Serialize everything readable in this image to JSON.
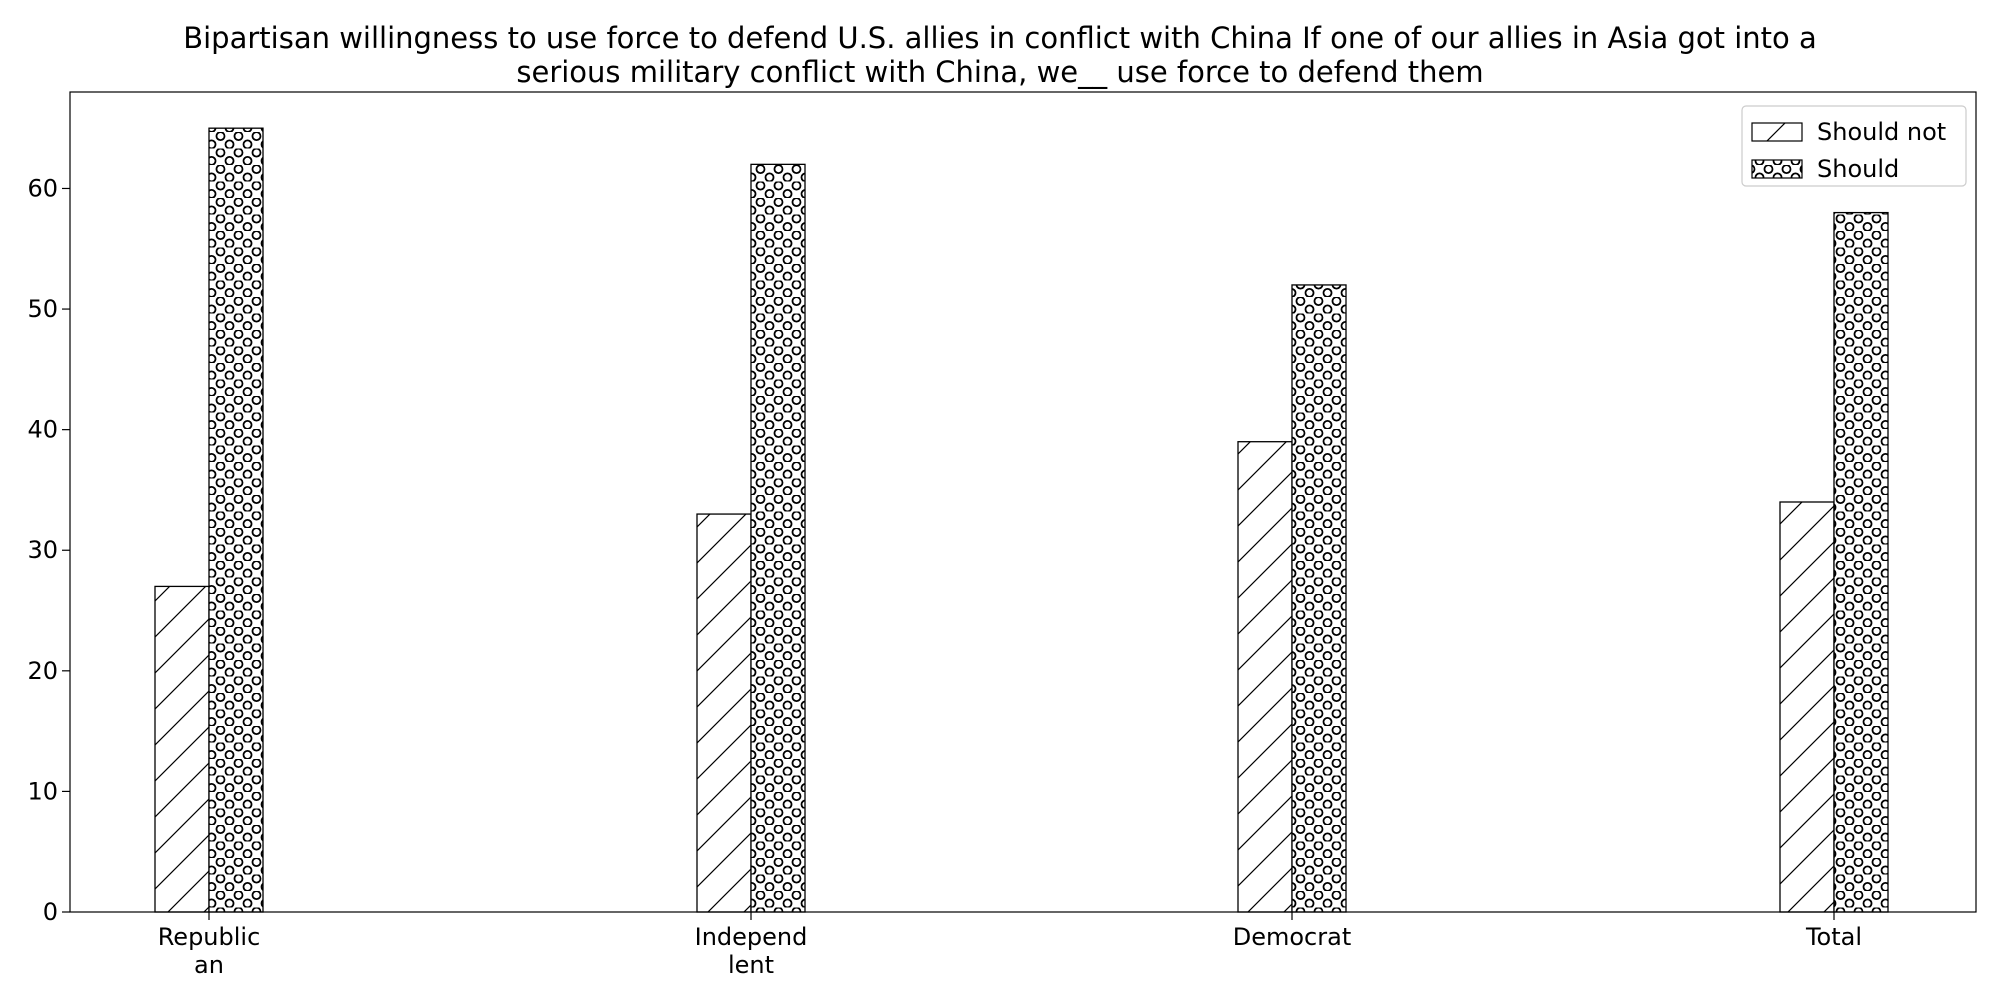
{
  "chart_data": {
    "type": "bar",
    "title": "Bipartisan willingness to use force to defend U.S. allies in conflict with China If one of our allies in Asia got into a serious military conflict with China, we__ use force to defend them",
    "title_lines": [
      "Bipartisan willingness to use force to defend U.S. allies in conflict with China If one of our allies in Asia got into a",
      "serious military conflict with China, we__ use force to defend them"
    ],
    "xlabel": "",
    "ylabel": "",
    "categories": [
      "Republican",
      "Independlent",
      "Democrat",
      "Total"
    ],
    "category_label_lines": [
      [
        "Republic",
        "an"
      ],
      [
        "Independ",
        "lent"
      ],
      [
        "Democrat"
      ],
      [
        "Total"
      ]
    ],
    "series": [
      {
        "name": "Should not",
        "values": [
          27,
          33,
          39,
          34
        ],
        "hatch": "diagonal"
      },
      {
        "name": "Should",
        "values": [
          65,
          62,
          52,
          58
        ],
        "hatch": "circles"
      }
    ],
    "ylim": [
      0,
      68
    ],
    "yticks": [
      0,
      10,
      20,
      30,
      40,
      50,
      60
    ],
    "grid": false,
    "legend_position": "top-right",
    "colors": {
      "bar_fill": "#ffffff",
      "edge": "#000000",
      "background": "#ffffff"
    }
  }
}
